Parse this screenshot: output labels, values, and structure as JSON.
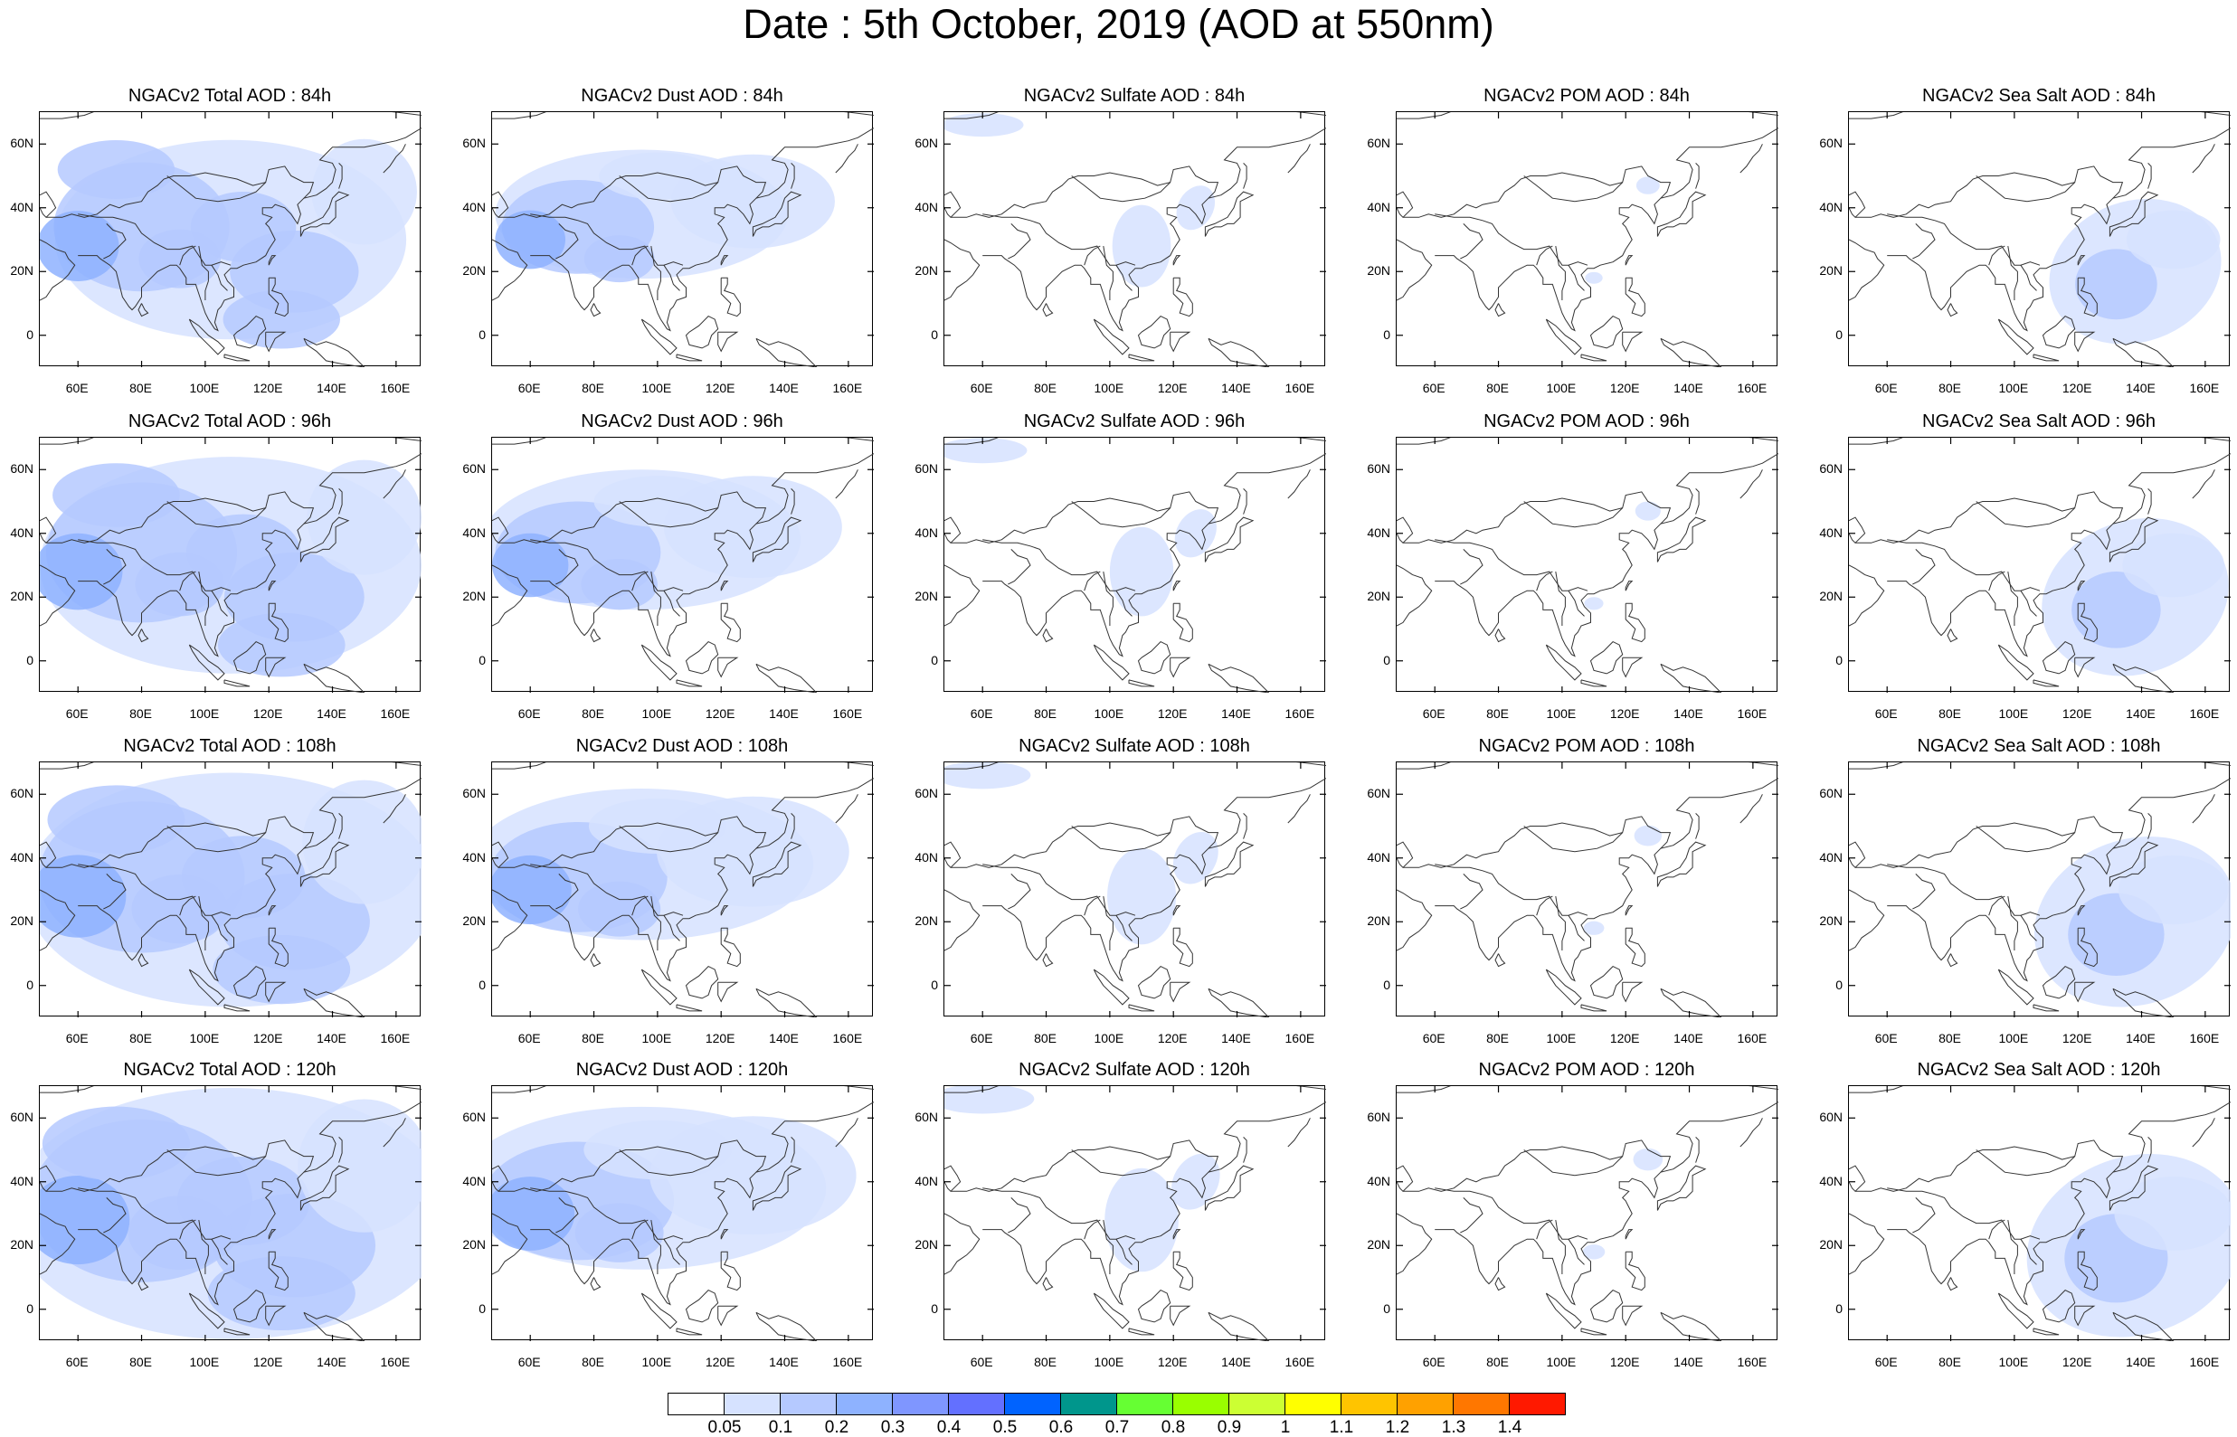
{
  "title": "Date : 5th October, 2019 (AOD at 550nm)",
  "grid": {
    "rows": [
      "84h",
      "96h",
      "108h",
      "120h"
    ],
    "columns": [
      "Total",
      "Dust",
      "Sulfate",
      "POM",
      "Sea Salt"
    ]
  },
  "panel_titles": [
    [
      "NGACv2 Total AOD : 84h",
      "NGACv2 Dust AOD : 84h",
      "NGACv2 Sulfate AOD : 84h",
      "NGACv2 POM AOD : 84h",
      "NGACv2 Sea Salt AOD : 84h"
    ],
    [
      "NGACv2 Total AOD : 96h",
      "NGACv2 Dust AOD : 96h",
      "NGACv2 Sulfate AOD : 96h",
      "NGACv2 POM AOD : 96h",
      "NGACv2 Sea Salt AOD : 96h"
    ],
    [
      "NGACv2 Total AOD : 108h",
      "NGACv2 Dust AOD : 108h",
      "NGACv2 Sulfate AOD : 108h",
      "NGACv2 POM AOD : 108h",
      "NGACv2 Sea Salt AOD : 108h"
    ],
    [
      "NGACv2 Total AOD : 120h",
      "NGACv2 Dust AOD : 120h",
      "NGACv2 Sulfate AOD : 120h",
      "NGACv2 POM AOD : 120h",
      "NGACv2 Sea Salt  AOD : 120h"
    ]
  ],
  "map_extent": {
    "lon": [
      48,
      168
    ],
    "lat": [
      -10,
      70
    ]
  },
  "lat_ticks": [
    {
      "value": 60,
      "label": "60N"
    },
    {
      "value": 40,
      "label": "40N"
    },
    {
      "value": 20,
      "label": "20N"
    },
    {
      "value": 0,
      "label": "0"
    }
  ],
  "lon_ticks": [
    {
      "value": 60,
      "label": "60E"
    },
    {
      "value": 80,
      "label": "80E"
    },
    {
      "value": 100,
      "label": "100E"
    },
    {
      "value": 120,
      "label": "120E"
    },
    {
      "value": 140,
      "label": "140E"
    },
    {
      "value": 160,
      "label": "160E"
    }
  ],
  "colorbar": {
    "labels": [
      "0.05",
      "0.1",
      "0.2",
      "0.3",
      "0.4",
      "0.5",
      "0.6",
      "0.7",
      "0.8",
      "0.9",
      "1",
      "1.1",
      "1.2",
      "1.3",
      "1.4"
    ],
    "colors": [
      "#ffffff",
      "#d6e2ff",
      "#b5c9ff",
      "#8eb2ff",
      "#7f96ff",
      "#6370ff",
      "#0063ff",
      "#00968c",
      "#66ff33",
      "#99ff00",
      "#ccff33",
      "#ffff00",
      "#ffc400",
      "#ffa100",
      "#ff7700",
      "#ff1900"
    ]
  },
  "aod_plume_colors": {
    "light": "#d6e2ff",
    "medium": "#b5c9ff",
    "strong": "#8eb2ff",
    "peak": "#6370ff"
  }
}
